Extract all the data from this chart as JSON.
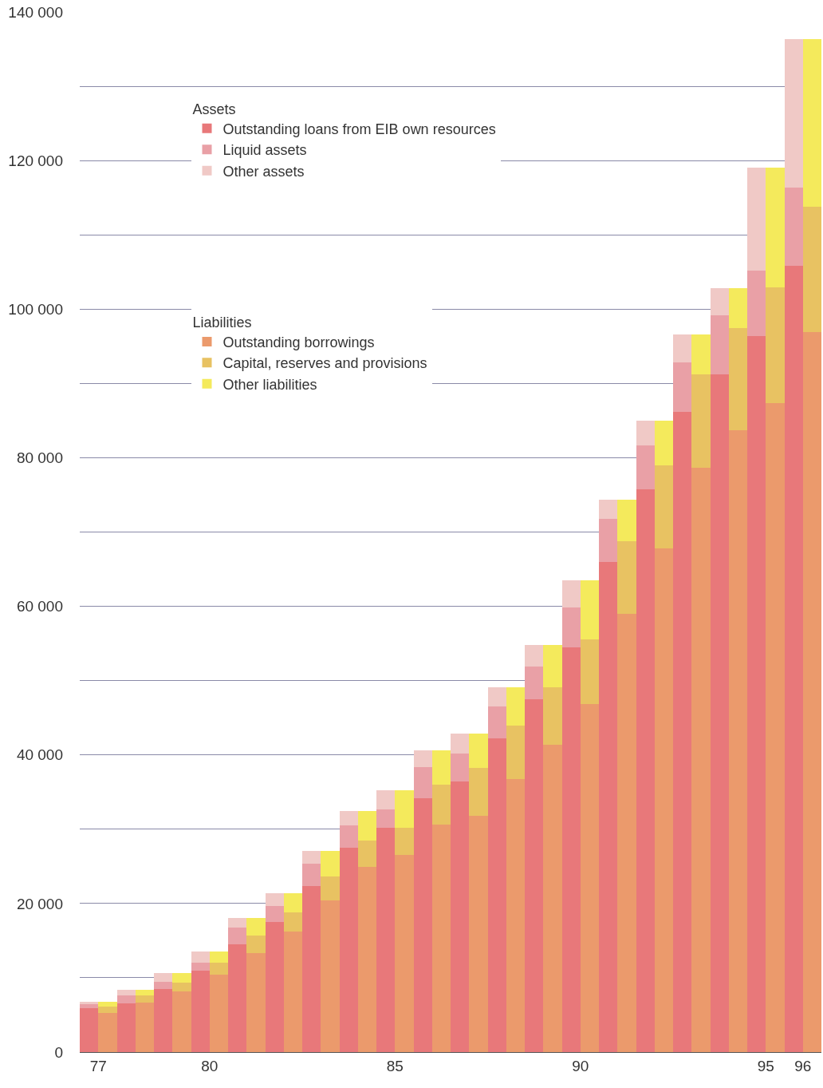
{
  "chart_data": [
    {
      "type": "bar",
      "stacked": true,
      "legend_title": "Assets",
      "categories": [
        "77",
        null,
        null,
        "80",
        null,
        null,
        null,
        null,
        "85",
        null,
        null,
        null,
        null,
        "90",
        null,
        null,
        null,
        null,
        "95",
        "96"
      ],
      "series": [
        {
          "name": "Outstanding loans from EIB own resources",
          "color": "#e8787a",
          "values": [
            5900,
            6600,
            8500,
            11000,
            14500,
            17500,
            22300,
            27500,
            30200,
            34200,
            36400,
            42200,
            47500,
            54500,
            66000,
            75800,
            86200,
            91200,
            96400,
            105800
          ]
        },
        {
          "name": "Liquid assets",
          "color": "#e9a0a6",
          "values": [
            500,
            1000,
            1000,
            1000,
            2300,
            2200,
            3100,
            3000,
            2500,
            4200,
            3800,
            4300,
            4400,
            5300,
            5800,
            5900,
            6600,
            8000,
            8800,
            10600
          ]
        },
        {
          "name": "Other assets",
          "color": "#f0c9c6",
          "values": [
            400,
            800,
            1100,
            1500,
            1300,
            1700,
            1700,
            2000,
            2500,
            2200,
            2700,
            2600,
            2900,
            3700,
            2600,
            3300,
            3800,
            3600,
            13900,
            19900
          ]
        }
      ],
      "ylim": [
        0,
        140000
      ],
      "yticks": [
        0,
        {
          "value": 10000,
          "label": null
        },
        {
          "value": 20000,
          "label": "20 000"
        },
        {
          "value": 30000,
          "label": null
        },
        {
          "value": 40000,
          "label": "40 000"
        },
        {
          "value": 50000,
          "label": null
        },
        {
          "value": 60000,
          "label": "60 000"
        },
        {
          "value": 70000,
          "label": null
        },
        {
          "value": 80000,
          "label": "80 000"
        },
        {
          "value": 90000,
          "label": null
        },
        {
          "value": 100000,
          "label": "100 000"
        },
        {
          "value": 110000,
          "label": null
        },
        {
          "value": 120000,
          "label": "120 000"
        },
        {
          "value": 130000,
          "label": null
        },
        {
          "value": 140000,
          "label": "140 000"
        }
      ],
      "grid": "y",
      "legend": "top left"
    },
    {
      "type": "bar",
      "stacked": true,
      "legend_title": "Liabilities",
      "categories": [
        "77",
        null,
        null,
        "80",
        null,
        null,
        null,
        null,
        "85",
        null,
        null,
        null,
        null,
        "90",
        null,
        null,
        null,
        null,
        "95",
        "96"
      ],
      "series": [
        {
          "name": "Outstanding borrowings",
          "color": "#eb9a6c",
          "values": [
            5300,
            6700,
            8200,
            10400,
            13300,
            16200,
            20400,
            24900,
            26500,
            30600,
            31800,
            36700,
            41400,
            46800,
            59000,
            67800,
            78700,
            83700,
            87300,
            96900
          ]
        },
        {
          "name": "Capital, reserves and provisions",
          "color": "#e8c262",
          "values": [
            800,
            900,
            1100,
            1600,
            2400,
            2600,
            3200,
            3600,
            3700,
            5400,
            6500,
            7200,
            7700,
            8700,
            9800,
            11200,
            12500,
            13700,
            15600,
            16900
          ]
        },
        {
          "name": "Other liabilities",
          "color": "#f4ea5c",
          "values": [
            700,
            800,
            1300,
            1500,
            2400,
            2600,
            3500,
            4000,
            5000,
            4600,
            4600,
            5200,
            5700,
            8000,
            5600,
            6000,
            5400,
            5400,
            16200,
            22500
          ]
        }
      ],
      "ylim": [
        0,
        140000
      ],
      "tick_labels": false,
      "legend": "top left"
    }
  ]
}
